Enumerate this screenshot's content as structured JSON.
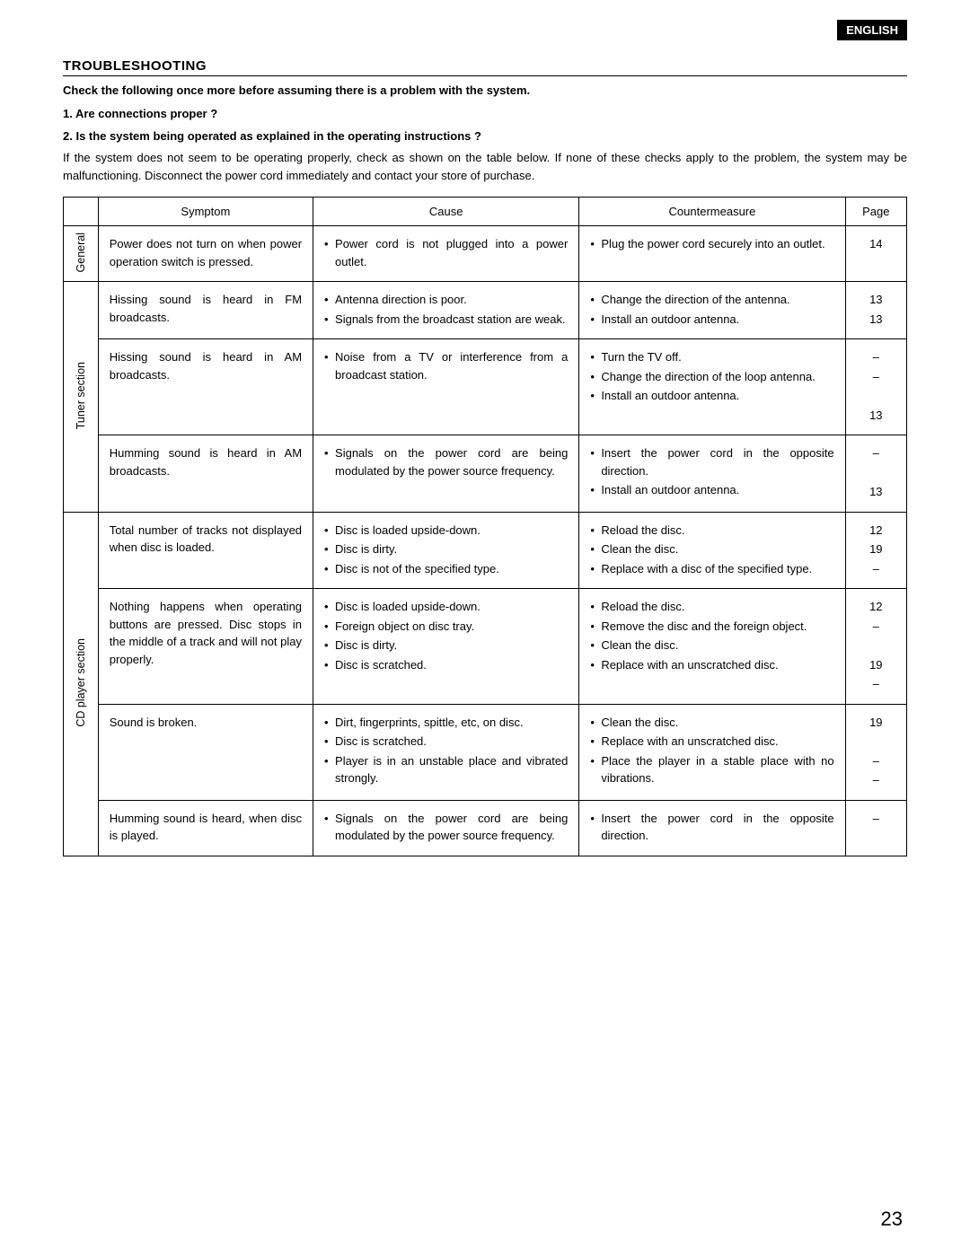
{
  "langBadge": "ENGLISH",
  "title": "TROUBLESHOOTING",
  "introBold1": "Check the following once more before assuming there is a problem with the system.",
  "introBold2": "1.  Are connections proper ?",
  "introBold3": "2.  Is the system being operated as explained in the operating instructions ?",
  "introPara": "If the system does not seem to be operating properly, check as shown on the table below. If none of these checks apply to the problem, the system may be malfunctioning.  Disconnect the power cord immediately and contact your store of purchase.",
  "headers": {
    "cat": "",
    "symptom": "Symptom",
    "cause": "Cause",
    "counter": "Countermeasure",
    "page": "Page"
  },
  "cats": {
    "general": "General",
    "tuner": "Tuner section",
    "cd": "CD player section"
  },
  "rows": [
    {
      "symptom": "Power does not turn on when power operation switch is pressed.",
      "cause": [
        "Power cord is not plugged into a power outlet."
      ],
      "counter": [
        "Plug the power cord securely into an outlet."
      ],
      "pages": [
        "14"
      ]
    },
    {
      "symptom": "Hissing sound is heard in FM broadcasts.",
      "cause": [
        "Antenna direction is poor.",
        "Signals from the broadcast station are weak."
      ],
      "counter": [
        "Change the direction of the antenna.",
        "Install an outdoor antenna."
      ],
      "pages": [
        "13",
        "13"
      ]
    },
    {
      "symptom": "Hissing sound is heard in AM broadcasts.",
      "cause": [
        "Noise from a TV or interference from a broadcast station."
      ],
      "counter": [
        "Turn the TV off.",
        "Change the direction of the loop antenna.",
        "Install an outdoor antenna."
      ],
      "pages": [
        "–",
        "–",
        "",
        "13"
      ]
    },
    {
      "symptom": "Humming sound is heard in AM broadcasts.",
      "cause": [
        "Signals on the power cord are being modulated by the power source frequency."
      ],
      "counter": [
        "Insert the power cord in the opposite direction.",
        "Install an outdoor antenna."
      ],
      "pages": [
        "–",
        "",
        "13"
      ]
    },
    {
      "symptom": "Total number of tracks not displayed when disc is loaded.",
      "cause": [
        "Disc is loaded upside-down.",
        "Disc is dirty.",
        "Disc is not of the specified type."
      ],
      "counter": [
        "Reload the disc.",
        "Clean the disc.",
        "Replace with a disc of the specified type."
      ],
      "pages": [
        "12",
        "19",
        "–"
      ]
    },
    {
      "symptom": "Nothing happens when operating buttons are pressed. Disc stops in the middle of a track and will not play properly.",
      "cause": [
        "Disc is loaded upside-down.",
        "Foreign object on disc tray.",
        "Disc is dirty.",
        "Disc is scratched."
      ],
      "counter": [
        "Reload the disc.",
        "Remove the disc and the foreign object.",
        "Clean the disc.",
        "Replace with an unscratched disc."
      ],
      "pages": [
        "12",
        "–",
        "",
        "19",
        "–"
      ]
    },
    {
      "symptom": "Sound is broken.",
      "cause": [
        "Dirt, fingerprints, spittle, etc, on disc.",
        "Disc is scratched.",
        "Player is in an unstable place and vibrated strongly."
      ],
      "counter": [
        "Clean the disc.",
        "Replace with an unscratched disc.",
        "Place the player in a stable place with no vibrations."
      ],
      "pages": [
        "19",
        "",
        "–",
        "–"
      ]
    },
    {
      "symptom": "Humming sound is heard, when disc is played.",
      "cause": [
        "Signals on the power cord are being modulated by the power source frequency."
      ],
      "counter": [
        "Insert the power cord in the opposite direction."
      ],
      "pages": [
        "–"
      ]
    }
  ],
  "pageNumber": "23"
}
